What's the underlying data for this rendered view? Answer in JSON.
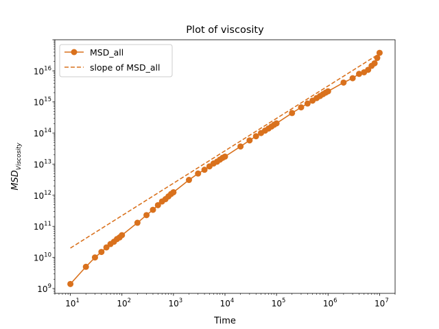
{
  "chart_data": {
    "type": "line",
    "title": "Plot of viscosity",
    "xlabel": "Time",
    "ylabel_base": "MSD",
    "ylabel_sub": "Viscosity",
    "xscale": "log",
    "yscale": "log",
    "xlim": [
      5,
      20000000
    ],
    "ylim": [
      700000000,
      100000000000000000
    ],
    "x_ticks": [
      {
        "base": "10",
        "exp": "1"
      },
      {
        "base": "10",
        "exp": "2"
      },
      {
        "base": "10",
        "exp": "3"
      },
      {
        "base": "10",
        "exp": "4"
      },
      {
        "base": "10",
        "exp": "5"
      },
      {
        "base": "10",
        "exp": "6"
      },
      {
        "base": "10",
        "exp": "7"
      }
    ],
    "y_ticks": [
      {
        "base": "10",
        "exp": "9"
      },
      {
        "base": "10",
        "exp": "10"
      },
      {
        "base": "10",
        "exp": "11"
      },
      {
        "base": "10",
        "exp": "12"
      },
      {
        "base": "10",
        "exp": "13"
      },
      {
        "base": "10",
        "exp": "14"
      },
      {
        "base": "10",
        "exp": "15"
      },
      {
        "base": "10",
        "exp": "16"
      }
    ],
    "grid": false,
    "legend_position": "top-left",
    "series": [
      {
        "name": "MSD_all",
        "style": "solid-with-circle-markers",
        "color": "#d9711d",
        "points": [
          [
            10,
            1400000000.0
          ],
          [
            20,
            5000000000.0
          ],
          [
            30,
            10000000000.0
          ],
          [
            40,
            15000000000.0
          ],
          [
            50,
            21000000000.0
          ],
          [
            60,
            27000000000.0
          ],
          [
            70,
            32000000000.0
          ],
          [
            80,
            39000000000.0
          ],
          [
            90,
            44000000000.0
          ],
          [
            100,
            52000000000.0
          ],
          [
            200,
            130000000000.0
          ],
          [
            300,
            230000000000.0
          ],
          [
            400,
            340000000000.0
          ],
          [
            500,
            480000000000.0
          ],
          [
            600,
            630000000000.0
          ],
          [
            700,
            750000000000.0
          ],
          [
            800,
            920000000000.0
          ],
          [
            900,
            1100000000000.0
          ],
          [
            1000,
            1250000000000.0
          ],
          [
            2000,
            3100000000000.0
          ],
          [
            3000,
            5000000000000.0
          ],
          [
            4000,
            6600000000000.0
          ],
          [
            5000,
            8500000000000.0
          ],
          [
            6000,
            10500000000000.0
          ],
          [
            7000,
            12000000000000.0
          ],
          [
            8000,
            14000000000000.0
          ],
          [
            9000,
            16000000000000.0
          ],
          [
            10000,
            17500000000000.0
          ],
          [
            20000,
            37000000000000.0
          ],
          [
            30000,
            58000000000000.0
          ],
          [
            40000,
            79000000000000.0
          ],
          [
            50000,
            100000000000000.0
          ],
          [
            60000,
            120000000000000.0
          ],
          [
            70000,
            140000000000000.0
          ],
          [
            80000,
            162000000000000.0
          ],
          [
            90000,
            185000000000000.0
          ],
          [
            100000,
            205000000000000.0
          ],
          [
            200000,
            440000000000000.0
          ],
          [
            300000,
            670000000000000.0
          ],
          [
            400000,
            890000000000000.0
          ],
          [
            500000,
            1100000000000000.0
          ],
          [
            600000,
            1330000000000000.0
          ],
          [
            700000,
            1550000000000000.0
          ],
          [
            800000,
            1780000000000000.0
          ],
          [
            900000,
            2000000000000000.0
          ],
          [
            1000000,
            2200000000000000.0
          ],
          [
            2000000,
            4200000000000000.0
          ],
          [
            3000000,
            5800000000000000.0
          ],
          [
            4000000,
            8000000000000000.0
          ],
          [
            5000000,
            9000000000000000.0
          ],
          [
            6000000,
            1.08e+16
          ],
          [
            7000000,
            1.45e+16
          ],
          [
            8000000,
            1.75e+16
          ],
          [
            9000000,
            2.6e+16
          ],
          [
            10000000,
            3.8e+16
          ]
        ]
      },
      {
        "name": "slope of MSD_all",
        "style": "dashed",
        "color": "#d9711d",
        "points": [
          [
            10,
            20000000000.0
          ],
          [
            10000000,
            3.6e+16
          ]
        ]
      }
    ]
  }
}
